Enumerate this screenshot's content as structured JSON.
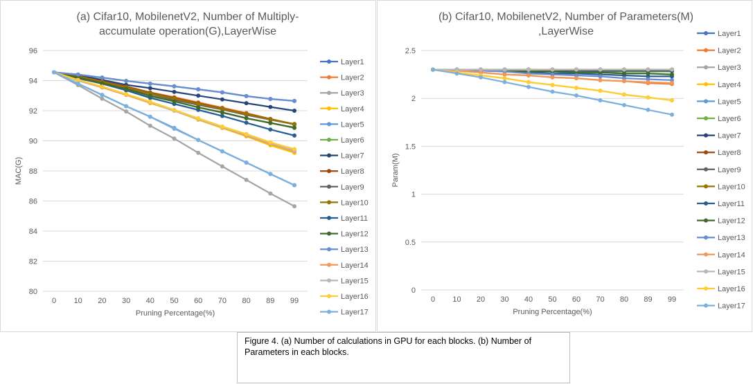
{
  "chart_data": [
    {
      "type": "line",
      "title_lines": [
        "(a) Cifar10, MobilenetV2, Number of Multiply-",
        "accumulate operation(G),LayerWise"
      ],
      "xlabel": "Pruning Percentage(%)",
      "ylabel": "MAC(G)",
      "categories": [
        "0",
        "10",
        "20",
        "30",
        "40",
        "50",
        "60",
        "70",
        "80",
        "89",
        "99"
      ],
      "ylim": [
        80,
        96
      ],
      "yticks": [
        "80",
        "82",
        "84",
        "86",
        "88",
        "90",
        "92",
        "94",
        "96"
      ],
      "grid": true,
      "legend_position": "right",
      "series": [
        {
          "name": "Layer1",
          "color": "#4472C4",
          "values": [
            94.55,
            94.4,
            94.2,
            93.98,
            93.8,
            93.62,
            93.42,
            93.22,
            92.97,
            92.78,
            92.65
          ]
        },
        {
          "name": "Layer2",
          "color": "#ED7D31",
          "values": [
            94.55,
            94.3,
            93.95,
            93.62,
            93.22,
            92.9,
            92.55,
            92.2,
            91.85,
            91.45,
            91.1
          ]
        },
        {
          "name": "Layer3",
          "color": "#A5A5A5",
          "values": [
            94.55,
            93.7,
            92.8,
            91.95,
            91.0,
            90.15,
            89.2,
            88.3,
            87.4,
            86.5,
            85.65
          ]
        },
        {
          "name": "Layer4",
          "color": "#FFC000",
          "values": [
            94.55,
            94.0,
            93.55,
            93.05,
            92.5,
            92.0,
            91.4,
            90.85,
            90.3,
            89.7,
            89.2
          ]
        },
        {
          "name": "Layer5",
          "color": "#5B9BD5",
          "values": [
            94.55,
            93.8,
            93.05,
            92.3,
            91.6,
            90.85,
            90.05,
            89.3,
            88.55,
            87.8,
            87.05
          ]
        },
        {
          "name": "Layer6",
          "color": "#70AD47",
          "values": [
            94.55,
            94.2,
            93.8,
            93.38,
            92.95,
            92.62,
            92.22,
            91.9,
            91.5,
            91.2,
            90.85
          ]
        },
        {
          "name": "Layer7",
          "color": "#264478",
          "values": [
            94.55,
            94.35,
            94.05,
            93.72,
            93.5,
            93.25,
            93.0,
            92.75,
            92.5,
            92.25,
            92.0
          ]
        },
        {
          "name": "Layer8",
          "color": "#9E480E",
          "values": [
            94.55,
            94.3,
            93.95,
            93.6,
            93.2,
            92.85,
            92.5,
            92.15,
            91.8,
            91.45,
            91.1
          ]
        },
        {
          "name": "Layer9",
          "color": "#636363",
          "values": [
            94.55,
            94.28,
            93.9,
            93.52,
            93.12,
            92.72,
            92.38,
            92.08,
            91.72,
            91.4,
            91.1
          ]
        },
        {
          "name": "Layer10",
          "color": "#997300",
          "values": [
            94.55,
            94.28,
            93.92,
            93.55,
            93.15,
            92.8,
            92.45,
            92.12,
            91.78,
            91.42,
            91.12
          ]
        },
        {
          "name": "Layer11",
          "color": "#255E91",
          "values": [
            94.55,
            94.15,
            93.8,
            93.35,
            92.85,
            92.45,
            92.05,
            91.65,
            91.2,
            90.75,
            90.35
          ]
        },
        {
          "name": "Layer12",
          "color": "#43682B",
          "values": [
            94.55,
            94.2,
            93.82,
            93.45,
            93.0,
            92.62,
            92.22,
            91.88,
            91.5,
            91.18,
            90.88
          ]
        },
        {
          "name": "Layer13",
          "color": "#698ED0",
          "values": [
            94.55,
            94.4,
            94.2,
            93.98,
            93.8,
            93.62,
            93.42,
            93.22,
            92.97,
            92.78,
            92.65
          ]
        },
        {
          "name": "Layer14",
          "color": "#F1975A",
          "values": [
            94.55,
            94.0,
            93.55,
            93.05,
            92.55,
            92.0,
            91.45,
            90.9,
            90.35,
            89.8,
            89.3
          ]
        },
        {
          "name": "Layer15",
          "color": "#B7B7B7",
          "values": [
            94.55,
            94.0,
            93.6,
            93.1,
            92.55,
            92.0,
            91.45,
            90.9,
            90.4,
            89.85,
            89.35
          ]
        },
        {
          "name": "Layer16",
          "color": "#FFCD33",
          "values": [
            94.55,
            94.05,
            93.6,
            93.1,
            92.6,
            92.05,
            91.5,
            90.95,
            90.45,
            89.9,
            89.45
          ]
        },
        {
          "name": "Layer17",
          "color": "#7CAFDD",
          "values": [
            94.55,
            93.8,
            93.05,
            92.3,
            91.6,
            90.8,
            90.05,
            89.3,
            88.55,
            87.8,
            87.05
          ]
        }
      ]
    },
    {
      "type": "line",
      "title_lines": [
        "(b) Cifar10, MobilenetV2, Number of Parameters(M)",
        ",LayerWise"
      ],
      "xlabel": "Pruning Percentage(%)",
      "ylabel": "Param(M)",
      "categories": [
        "0",
        "10",
        "20",
        "30",
        "40",
        "50",
        "60",
        "70",
        "80",
        "89",
        "99"
      ],
      "ylim": [
        0,
        2.5
      ],
      "yticks": [
        "0",
        "0.5",
        "1",
        "1.5",
        "2",
        "2.5"
      ],
      "grid": true,
      "legend_position": "right",
      "series": [
        {
          "name": "Layer1",
          "color": "#4472C4",
          "values": [
            2.3,
            2.3,
            2.3,
            2.3,
            2.3,
            2.3,
            2.3,
            2.3,
            2.3,
            2.3,
            2.3
          ]
        },
        {
          "name": "Layer2",
          "color": "#ED7D31",
          "values": [
            2.3,
            2.29,
            2.27,
            2.25,
            2.24,
            2.22,
            2.21,
            2.19,
            2.18,
            2.16,
            2.15
          ]
        },
        {
          "name": "Layer3",
          "color": "#A5A5A5",
          "values": [
            2.3,
            2.3,
            2.3,
            2.3,
            2.3,
            2.3,
            2.3,
            2.3,
            2.3,
            2.3,
            2.3
          ]
        },
        {
          "name": "Layer4",
          "color": "#FFC000",
          "values": [
            2.3,
            2.27,
            2.24,
            2.21,
            2.17,
            2.14,
            2.11,
            2.08,
            2.04,
            2.01,
            1.98
          ]
        },
        {
          "name": "Layer5",
          "color": "#5B9BD5",
          "values": [
            2.3,
            2.3,
            2.3,
            2.3,
            2.3,
            2.3,
            2.3,
            2.3,
            2.3,
            2.3,
            2.3
          ]
        },
        {
          "name": "Layer6",
          "color": "#70AD47",
          "values": [
            2.3,
            2.3,
            2.3,
            2.29,
            2.29,
            2.29,
            2.29,
            2.28,
            2.28,
            2.28,
            2.28
          ]
        },
        {
          "name": "Layer7",
          "color": "#264478",
          "values": [
            2.3,
            2.3,
            2.3,
            2.3,
            2.3,
            2.29,
            2.29,
            2.29,
            2.29,
            2.29,
            2.29
          ]
        },
        {
          "name": "Layer8",
          "color": "#9E480E",
          "values": [
            2.3,
            2.3,
            2.3,
            2.3,
            2.3,
            2.3,
            2.3,
            2.3,
            2.3,
            2.3,
            2.3
          ]
        },
        {
          "name": "Layer9",
          "color": "#636363",
          "values": [
            2.3,
            2.3,
            2.3,
            2.3,
            2.3,
            2.3,
            2.3,
            2.3,
            2.3,
            2.3,
            2.3
          ]
        },
        {
          "name": "Layer10",
          "color": "#997300",
          "values": [
            2.3,
            2.3,
            2.3,
            2.3,
            2.3,
            2.3,
            2.3,
            2.3,
            2.3,
            2.3,
            2.3
          ]
        },
        {
          "name": "Layer11",
          "color": "#255E91",
          "values": [
            2.3,
            2.3,
            2.29,
            2.28,
            2.27,
            2.26,
            2.26,
            2.25,
            2.24,
            2.23,
            2.23
          ]
        },
        {
          "name": "Layer12",
          "color": "#43682B",
          "values": [
            2.3,
            2.3,
            2.29,
            2.29,
            2.28,
            2.28,
            2.27,
            2.27,
            2.26,
            2.26,
            2.25
          ]
        },
        {
          "name": "Layer13",
          "color": "#698ED0",
          "values": [
            2.3,
            2.3,
            2.29,
            2.28,
            2.26,
            2.25,
            2.24,
            2.23,
            2.21,
            2.2,
            2.19
          ]
        },
        {
          "name": "Layer14",
          "color": "#F1975A",
          "values": [
            2.3,
            2.29,
            2.27,
            2.25,
            2.24,
            2.22,
            2.21,
            2.19,
            2.18,
            2.17,
            2.16
          ]
        },
        {
          "name": "Layer15",
          "color": "#B7B7B7",
          "values": [
            2.3,
            2.3,
            2.3,
            2.3,
            2.3,
            2.3,
            2.3,
            2.3,
            2.3,
            2.3,
            2.3
          ]
        },
        {
          "name": "Layer16",
          "color": "#FFCD33",
          "values": [
            2.3,
            2.27,
            2.24,
            2.21,
            2.17,
            2.14,
            2.11,
            2.08,
            2.04,
            2.01,
            1.98
          ]
        },
        {
          "name": "Layer17",
          "color": "#7CAFDD",
          "values": [
            2.3,
            2.26,
            2.22,
            2.17,
            2.12,
            2.07,
            2.03,
            1.98,
            1.93,
            1.88,
            1.83
          ]
        }
      ]
    }
  ],
  "caption": {
    "line1": "Figure 4. (a) Number of calculations in GPU for each blocks. (b) Number of",
    "line2": "Parameters in each blocks."
  }
}
